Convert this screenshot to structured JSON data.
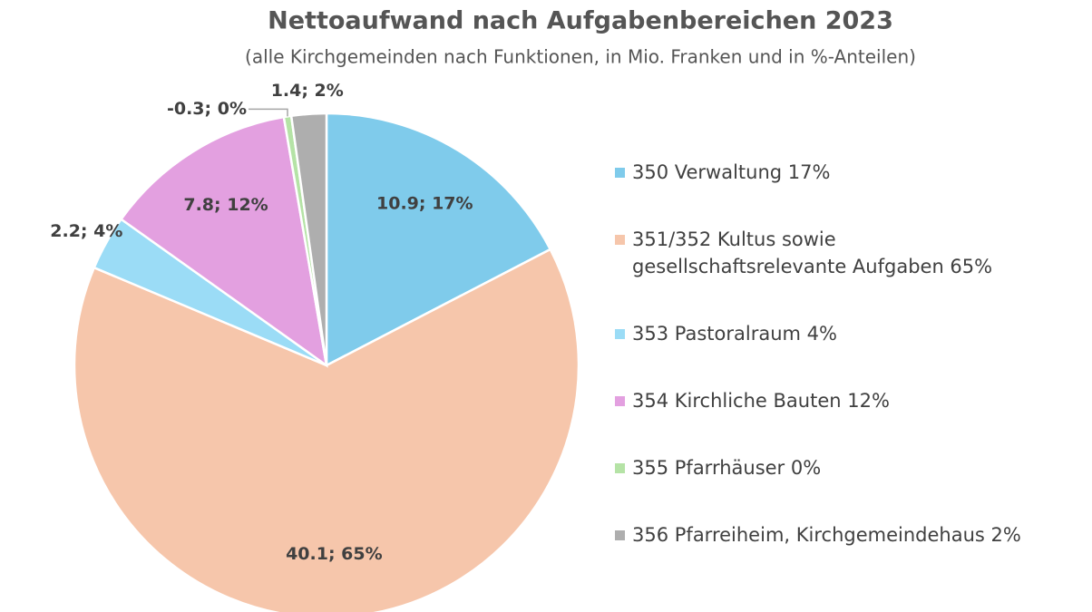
{
  "chart_data": {
    "type": "pie",
    "title": "Nettoaufwand nach Aufgabenbereichen 2023",
    "subtitle": "(alle Kirchgemeinden nach Funktionen, in Mio. Franken und in %-Anteilen)",
    "categories": [
      "350 Verwaltung 17%",
      "351/352 Kultus sowie gesellschaftsrelevante Aufgaben 65%",
      "353 Pastoralraum 4%",
      "354 Kirchliche Bauten 12%",
      "355 Pfarrhäuser 0%",
      "356 Pfarreiheim, Kirchgemeindehaus 2%"
    ],
    "values": [
      10.9,
      40.1,
      2.2,
      7.8,
      -0.3,
      1.4
    ],
    "value_labels": [
      "10.9; 17%",
      "40.1; 65%",
      "2.2; 4%",
      "7.8; 12%",
      "-0.3; 0%",
      "1.4; 2%"
    ],
    "colors": [
      "#7fcbeb",
      "#f6c6ab",
      "#9bdcf6",
      "#e3a0e0",
      "#b5e3a6",
      "#aeaeae"
    ],
    "legend": "right"
  }
}
